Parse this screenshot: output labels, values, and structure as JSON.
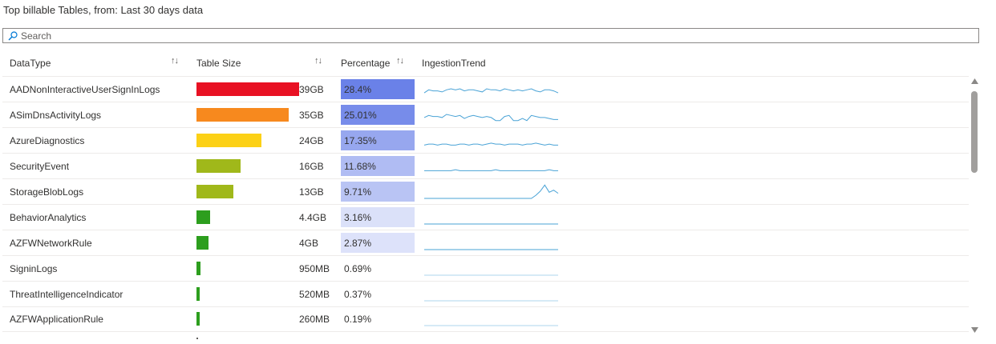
{
  "title": "Top billable Tables, from: Last 30 days data",
  "search": {
    "placeholder": "Search",
    "value": ""
  },
  "columns": {
    "datatype": "DataType",
    "table_size": "Table Size",
    "percentage": "Percentage",
    "ingestion_trend": "IngestionTrend"
  },
  "colors": {
    "bar_red": "#e81123",
    "bar_orange": "#f7891e",
    "bar_yellow": "#fcd116",
    "bar_olive": "#a0b81a",
    "bar_green": "#2d9e1e",
    "pct_strong": "#6a81e8",
    "pct_light": "#f3f5fd",
    "spark": "#4aa3d6"
  },
  "rows": [
    {
      "name": "AADNonInteractiveUserSignInLogs",
      "size": "39GB",
      "size_fraction": 1.0,
      "bar_color": "#e81123",
      "pct": "28.4%",
      "pct_value": 28.4,
      "trend": [
        3,
        6,
        5,
        5,
        4,
        6,
        7,
        6,
        7,
        5,
        6,
        6,
        5,
        4,
        7,
        6,
        6,
        5,
        7,
        6,
        5,
        6,
        5,
        6,
        7,
        5,
        4,
        6,
        6,
        5,
        3
      ]
    },
    {
      "name": "ASimDnsActivityLogs",
      "size": "35GB",
      "size_fraction": 0.9,
      "bar_color": "#f7891e",
      "pct": "25.01%",
      "pct_value": 25.01,
      "trend": [
        4,
        6,
        5,
        5,
        4,
        7,
        6,
        5,
        6,
        3,
        5,
        6,
        5,
        4,
        5,
        4,
        1,
        1,
        5,
        6,
        1,
        1,
        3,
        1,
        6,
        5,
        4,
        4,
        3,
        2,
        2
      ]
    },
    {
      "name": "AzureDiagnostics",
      "size": "24GB",
      "size_fraction": 0.63,
      "bar_color": "#fcd116",
      "pct": "17.35%",
      "pct_value": 17.35,
      "trend": [
        2,
        3,
        3,
        2,
        3,
        3,
        2,
        2,
        3,
        3,
        2,
        3,
        3,
        2,
        3,
        4,
        3,
        3,
        2,
        3,
        3,
        3,
        2,
        3,
        3,
        4,
        3,
        2,
        3,
        2,
        2
      ]
    },
    {
      "name": "SecurityEvent",
      "size": "16GB",
      "size_fraction": 0.43,
      "bar_color": "#a0b81a",
      "pct": "11.68%",
      "pct_value": 11.68,
      "trend": [
        2,
        2,
        2,
        2,
        2,
        2,
        2,
        3,
        2,
        2,
        2,
        2,
        2,
        2,
        2,
        2,
        3,
        2,
        2,
        2,
        2,
        2,
        2,
        2,
        2,
        2,
        2,
        2,
        3,
        2,
        2
      ]
    },
    {
      "name": "StorageBlobLogs",
      "size": "13GB",
      "size_fraction": 0.36,
      "bar_color": "#a0b81a",
      "pct": "9.71%",
      "pct_value": 9.71,
      "trend": [
        0,
        0,
        0,
        0,
        0,
        0,
        0,
        0,
        0,
        0,
        0,
        0,
        0,
        0,
        0,
        0,
        0,
        0,
        0,
        0,
        0,
        0,
        0,
        0,
        0,
        3,
        7,
        13,
        6,
        8,
        5
      ]
    },
    {
      "name": "BehaviorAnalytics",
      "size": "4.4GB",
      "size_fraction": 0.13,
      "bar_color": "#2d9e1e",
      "pct": "3.16%",
      "pct_value": 3.16,
      "trend": [
        0,
        0,
        0,
        0,
        0,
        0,
        0,
        0,
        0,
        0,
        0,
        0,
        0,
        0,
        0,
        0,
        0,
        0,
        0,
        0,
        0,
        0,
        0,
        0,
        0,
        0,
        0,
        0,
        0,
        0,
        0
      ]
    },
    {
      "name": "AZFWNetworkRule",
      "size": "4GB",
      "size_fraction": 0.12,
      "bar_color": "#2d9e1e",
      "pct": "2.87%",
      "pct_value": 2.87,
      "trend": [
        0,
        0,
        0,
        0,
        0,
        0,
        0,
        0,
        0,
        0,
        0,
        0,
        0,
        0,
        0,
        0,
        0,
        0,
        0,
        0,
        0,
        0,
        0,
        0,
        0,
        0,
        0,
        0,
        0,
        0,
        0
      ]
    },
    {
      "name": "SigninLogs",
      "size": "950MB",
      "size_fraction": 0.04,
      "bar_color": "#2d9e1e",
      "pct": "0.69%",
      "pct_value": 0.69,
      "trend": [
        0,
        0,
        0,
        0,
        0,
        0,
        0,
        0,
        0,
        0,
        0,
        0,
        0,
        0,
        0,
        0,
        0,
        0,
        0,
        0,
        0,
        0,
        0,
        0,
        0,
        0,
        0,
        0,
        0,
        0,
        0
      ]
    },
    {
      "name": "ThreatIntelligenceIndicator",
      "size": "520MB",
      "size_fraction": 0.025,
      "bar_color": "#2d9e1e",
      "pct": "0.37%",
      "pct_value": 0.37,
      "trend": [
        0,
        0,
        0,
        0,
        0,
        0,
        0,
        0,
        0,
        0,
        0,
        0,
        0,
        0,
        0,
        0,
        0,
        0,
        0,
        0,
        0,
        0,
        0,
        0,
        0,
        0,
        0,
        0,
        0,
        0,
        0
      ]
    },
    {
      "name": "AZFWApplicationRule",
      "size": "260MB",
      "size_fraction": 0.015,
      "bar_color": "#2d9e1e",
      "pct": "0.19%",
      "pct_value": 0.19,
      "trend": [
        0,
        0,
        0,
        0,
        0,
        0,
        0,
        0,
        0,
        0,
        0,
        0,
        0,
        0,
        0,
        0,
        0,
        0,
        0,
        0,
        0,
        0,
        0,
        0,
        0,
        0,
        0,
        0,
        0,
        0,
        0
      ]
    }
  ]
}
